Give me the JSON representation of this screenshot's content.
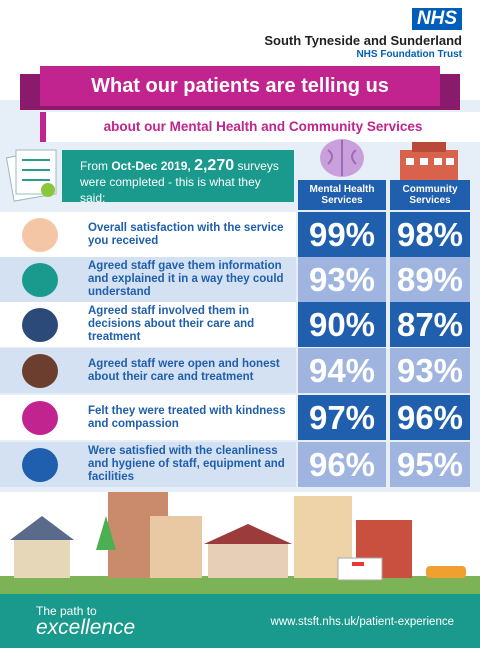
{
  "header": {
    "logo": "NHS",
    "org": "South Tyneside and Sunderland",
    "trust": "NHS Foundation Trust"
  },
  "banner": {
    "title": "What our patients are telling us",
    "subtitle": "about our Mental Health and Community Services"
  },
  "intro": {
    "prefix": "From",
    "period": "Oct-Dec 2019,",
    "count": "2,270",
    "suffix": "surveys were completed - this is what they said:"
  },
  "table": {
    "columns": [
      "Mental Health Services",
      "Community Services"
    ],
    "rows": [
      {
        "label": "Overall satisfaction with the service you received",
        "values": [
          "99%",
          "98%"
        ]
      },
      {
        "label": "Agreed staff gave them information and explained it in a way they could understand",
        "values": [
          "93%",
          "89%"
        ]
      },
      {
        "label": "Agreed staff involved them in decisions about their care and treatment",
        "values": [
          "90%",
          "87%"
        ]
      },
      {
        "label": "Agreed staff were open and honest about their care and treatment",
        "values": [
          "94%",
          "93%"
        ]
      },
      {
        "label": "Felt they were treated with kindness and compassion",
        "values": [
          "97%",
          "96%"
        ]
      },
      {
        "label": "Were satisfied with the cleanliness and hygiene of staff, equipment and facilities",
        "values": [
          "96%",
          "95%"
        ]
      }
    ]
  },
  "footer": {
    "tagline": "The path to",
    "brand": "excellence",
    "url": "www.stsft.nhs.uk/patient-experience"
  }
}
